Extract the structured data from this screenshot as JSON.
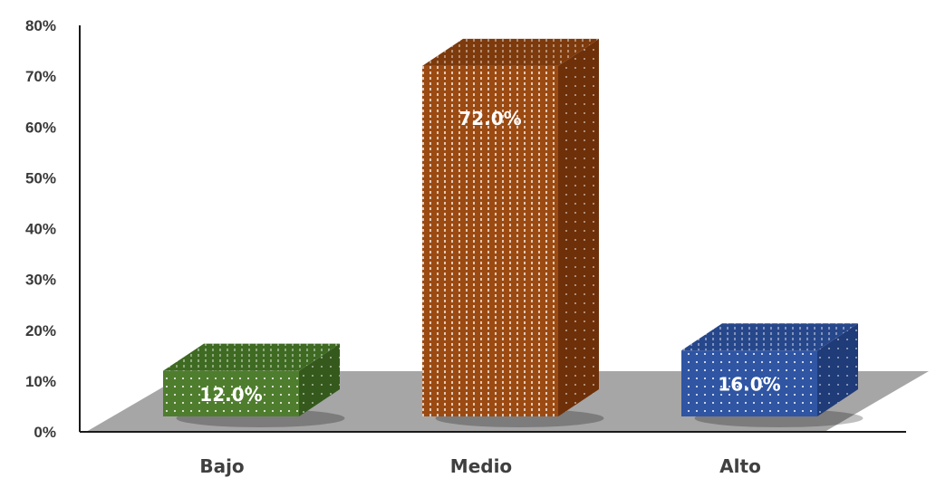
{
  "chart_data": {
    "type": "bar",
    "categories": [
      "Bajo",
      "Medio",
      "Alto"
    ],
    "values": [
      12.0,
      72.0,
      16.0
    ],
    "data_labels": [
      "12.0%",
      "72.0%",
      "16.0%"
    ],
    "y_ticks": [
      "0%",
      "10%",
      "20%",
      "30%",
      "40%",
      "50%",
      "60%",
      "70%",
      "80%"
    ],
    "ylim": [
      0,
      80
    ],
    "grid": false,
    "legend": "none",
    "style": "3d-bar with floor",
    "colors": {
      "Bajo": {
        "front": "#4f7d2e",
        "side": "#35591c",
        "top": "#3e6a22"
      },
      "Medio": {
        "front": "#9b4a12",
        "side": "#6e3009",
        "top": "#7d3a0c"
      },
      "Alto": {
        "front": "#2f55a3",
        "side": "#1f3b78",
        "top": "#27478b"
      },
      "floor": "#a6a6a6"
    }
  }
}
